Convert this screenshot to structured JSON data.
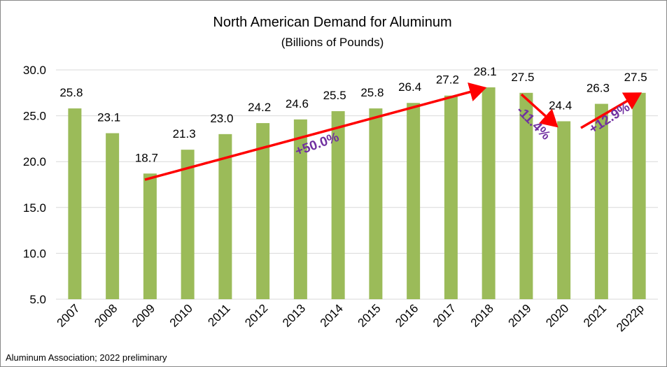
{
  "chart_data": {
    "type": "bar",
    "title": "North American Demand for Aluminum",
    "subtitle": "(Billions of Pounds)",
    "categories": [
      "2007",
      "2008",
      "2009",
      "2010",
      "2011",
      "2012",
      "2013",
      "2014",
      "2015",
      "2016",
      "2017",
      "2018",
      "2019",
      "2020",
      "2021",
      "2022p"
    ],
    "values": [
      25.8,
      23.1,
      18.7,
      21.3,
      23.0,
      24.2,
      24.6,
      25.5,
      25.8,
      26.4,
      27.2,
      28.1,
      27.5,
      24.4,
      26.3,
      27.5
    ],
    "value_labels": [
      "25.8",
      "23.1",
      "18.7",
      "21.3",
      "23.0",
      "24.2",
      "24.6",
      "25.5",
      "25.8",
      "26.4",
      "27.2",
      "28.1",
      "27.5",
      "24.4",
      "26.3",
      "27.5"
    ],
    "color": "#9bbb59",
    "ylim": [
      5,
      30
    ],
    "yticks": [
      {
        "value": 5,
        "label": "5.0"
      },
      {
        "value": 10,
        "label": "10.0"
      },
      {
        "value": 15,
        "label": "15.0"
      },
      {
        "value": 20,
        "label": "20.0"
      },
      {
        "value": 25,
        "label": "25.0"
      },
      {
        "value": 30,
        "label": "30.0"
      }
    ],
    "grid": true,
    "annotations": [
      "+50.0%",
      "-11.4%",
      "+12.9%"
    ],
    "source": "Aluminum Association; 2022 preliminary"
  }
}
